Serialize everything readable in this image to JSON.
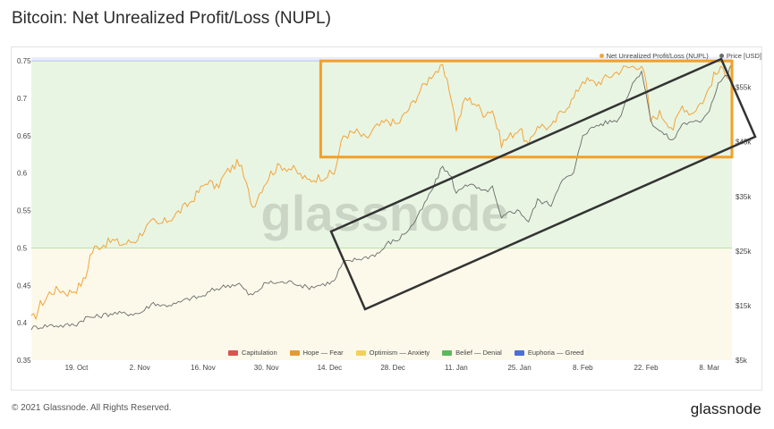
{
  "title": "Bitcoin: Net Unrealized Profit/Loss (NUPL)",
  "footer": {
    "copyright": "© 2021 Glassnode. All Rights Reserved.",
    "logo": "glassnode"
  },
  "watermark": "glassnode",
  "chart_data": {
    "type": "line",
    "title": "Bitcoin: Net Unrealized Profit/Loss (NUPL)",
    "x_tick_labels": [
      "19. Oct",
      "2. Nov",
      "16. Nov",
      "30. Nov",
      "14. Dec",
      "28. Dec",
      "11. Jan",
      "25. Jan",
      "8. Feb",
      "22. Feb",
      "8. Mar"
    ],
    "x_tick_dates": [
      "2020-10-19",
      "2020-11-02",
      "2020-11-16",
      "2020-11-30",
      "2020-12-14",
      "2020-12-28",
      "2021-01-11",
      "2021-01-25",
      "2021-02-08",
      "2021-02-22",
      "2021-03-08"
    ],
    "x_range": [
      "2020-10-09",
      "2021-03-13"
    ],
    "y_left": {
      "ticks": [
        "0.35",
        "0.4",
        "0.45",
        "0.5",
        "0.55",
        "0.6",
        "0.65",
        "0.7",
        "0.75"
      ],
      "range": [
        0.35,
        0.755
      ]
    },
    "y_right": {
      "ticks": [
        "$5k",
        "$15k",
        "$25k",
        "$35k",
        "$45k",
        "$55k"
      ],
      "range": [
        5000,
        60500
      ]
    },
    "zones": [
      {
        "name": "Hope — Fear",
        "from": 0.35,
        "to": 0.5,
        "color": "#fdf9ea"
      },
      {
        "name": "Belief — Denial",
        "from": 0.5,
        "to": 0.75,
        "color": "#e8f5e3"
      },
      {
        "name": "Euphoria — Greed",
        "from": 0.75,
        "to": 0.755,
        "color": "#e9ecfb"
      }
    ],
    "series": [
      {
        "name": "Net Unrealized Profit/Loss (NUPL)",
        "axis": "left",
        "color": "#f3a43a",
        "points": [
          [
            "2020-10-09",
            0.405
          ],
          [
            "2020-10-10",
            0.41
          ],
          [
            "2020-10-11",
            0.425
          ],
          [
            "2020-10-12",
            0.43
          ],
          [
            "2020-10-13",
            0.44
          ],
          [
            "2020-10-15",
            0.445
          ],
          [
            "2020-10-17",
            0.44
          ],
          [
            "2020-10-19",
            0.445
          ],
          [
            "2020-10-21",
            0.46
          ],
          [
            "2020-10-22",
            0.49
          ],
          [
            "2020-10-23",
            0.5
          ],
          [
            "2020-10-25",
            0.505
          ],
          [
            "2020-10-27",
            0.51
          ],
          [
            "2020-10-29",
            0.505
          ],
          [
            "2020-11-01",
            0.51
          ],
          [
            "2020-11-03",
            0.525
          ],
          [
            "2020-11-05",
            0.535
          ],
          [
            "2020-11-06",
            0.53
          ],
          [
            "2020-11-09",
            0.54
          ],
          [
            "2020-11-11",
            0.55
          ],
          [
            "2020-11-13",
            0.56
          ],
          [
            "2020-11-17",
            0.59
          ],
          [
            "2020-11-19",
            0.58
          ],
          [
            "2020-11-21",
            0.6
          ],
          [
            "2020-11-24",
            0.615
          ],
          [
            "2020-11-26",
            0.575
          ],
          [
            "2020-11-27",
            0.555
          ],
          [
            "2020-11-29",
            0.58
          ],
          [
            "2020-12-01",
            0.6
          ],
          [
            "2020-12-03",
            0.61
          ],
          [
            "2020-12-06",
            0.605
          ],
          [
            "2020-12-09",
            0.59
          ],
          [
            "2020-12-12",
            0.595
          ],
          [
            "2020-12-15",
            0.6
          ],
          [
            "2020-12-16",
            0.625
          ],
          [
            "2020-12-17",
            0.65
          ],
          [
            "2020-12-20",
            0.655
          ],
          [
            "2020-12-22",
            0.645
          ],
          [
            "2020-12-24",
            0.66
          ],
          [
            "2020-12-27",
            0.67
          ],
          [
            "2020-12-29",
            0.665
          ],
          [
            "2021-01-01",
            0.69
          ],
          [
            "2021-01-03",
            0.71
          ],
          [
            "2021-01-06",
            0.735
          ],
          [
            "2021-01-08",
            0.74
          ],
          [
            "2021-01-10",
            0.7
          ],
          [
            "2021-01-11",
            0.66
          ],
          [
            "2021-01-13",
            0.7
          ],
          [
            "2021-01-15",
            0.695
          ],
          [
            "2021-01-17",
            0.68
          ],
          [
            "2021-01-19",
            0.685
          ],
          [
            "2021-01-21",
            0.64
          ],
          [
            "2021-01-23",
            0.65
          ],
          [
            "2021-01-25",
            0.66
          ],
          [
            "2021-01-27",
            0.635
          ],
          [
            "2021-01-29",
            0.665
          ],
          [
            "2021-02-01",
            0.66
          ],
          [
            "2021-02-03",
            0.68
          ],
          [
            "2021-02-06",
            0.7
          ],
          [
            "2021-02-08",
            0.725
          ],
          [
            "2021-02-11",
            0.72
          ],
          [
            "2021-02-14",
            0.73
          ],
          [
            "2021-02-17",
            0.74
          ],
          [
            "2021-02-21",
            0.745
          ],
          [
            "2021-02-22",
            0.72
          ],
          [
            "2021-02-23",
            0.67
          ],
          [
            "2021-02-25",
            0.68
          ],
          [
            "2021-02-28",
            0.66
          ],
          [
            "2021-03-02",
            0.69
          ],
          [
            "2021-03-04",
            0.68
          ],
          [
            "2021-03-07",
            0.7
          ],
          [
            "2021-03-09",
            0.73
          ],
          [
            "2021-03-11",
            0.74
          ],
          [
            "2021-03-13",
            0.725
          ]
        ]
      },
      {
        "name": "Price [USD]",
        "axis": "right",
        "color": "#6b6b6b",
        "points": [
          [
            "2020-10-09",
            10900
          ],
          [
            "2020-10-13",
            11400
          ],
          [
            "2020-10-16",
            11300
          ],
          [
            "2020-10-19",
            11600
          ],
          [
            "2020-10-21",
            12800
          ],
          [
            "2020-10-23",
            12900
          ],
          [
            "2020-10-27",
            13600
          ],
          [
            "2020-10-30",
            13500
          ],
          [
            "2020-11-02",
            13600
          ],
          [
            "2020-11-05",
            15500
          ],
          [
            "2020-11-07",
            15000
          ],
          [
            "2020-11-10",
            15300
          ],
          [
            "2020-11-13",
            16300
          ],
          [
            "2020-11-16",
            16700
          ],
          [
            "2020-11-18",
            17800
          ],
          [
            "2020-11-21",
            18600
          ],
          [
            "2020-11-24",
            19000
          ],
          [
            "2020-11-26",
            17100
          ],
          [
            "2020-11-27",
            16900
          ],
          [
            "2020-11-30",
            19200
          ],
          [
            "2020-12-02",
            19200
          ],
          [
            "2020-12-06",
            19300
          ],
          [
            "2020-12-09",
            18300
          ],
          [
            "2020-12-12",
            18800
          ],
          [
            "2020-12-15",
            19400
          ],
          [
            "2020-12-16",
            21300
          ],
          [
            "2020-12-17",
            22800
          ],
          [
            "2020-12-20",
            23500
          ],
          [
            "2020-12-22",
            23800
          ],
          [
            "2020-12-25",
            24700
          ],
          [
            "2020-12-27",
            26500
          ],
          [
            "2020-12-29",
            27000
          ],
          [
            "2021-01-01",
            29400
          ],
          [
            "2021-01-03",
            32000
          ],
          [
            "2021-01-06",
            36800
          ],
          [
            "2021-01-08",
            40600
          ],
          [
            "2021-01-10",
            38300
          ],
          [
            "2021-01-11",
            35500
          ],
          [
            "2021-01-13",
            37300
          ],
          [
            "2021-01-15",
            36800
          ],
          [
            "2021-01-17",
            35800
          ],
          [
            "2021-01-19",
            36600
          ],
          [
            "2021-01-21",
            30800
          ],
          [
            "2021-01-23",
            32300
          ],
          [
            "2021-01-25",
            32300
          ],
          [
            "2021-01-27",
            30400
          ],
          [
            "2021-01-29",
            34300
          ],
          [
            "2021-02-01",
            33500
          ],
          [
            "2021-02-03",
            37600
          ],
          [
            "2021-02-06",
            39200
          ],
          [
            "2021-02-08",
            46400
          ],
          [
            "2021-02-11",
            48000
          ],
          [
            "2021-02-14",
            48700
          ],
          [
            "2021-02-16",
            49100
          ],
          [
            "2021-02-19",
            55900
          ],
          [
            "2021-02-21",
            57500
          ],
          [
            "2021-02-22",
            54200
          ],
          [
            "2021-02-23",
            48800
          ],
          [
            "2021-02-25",
            47000
          ],
          [
            "2021-02-28",
            45200
          ],
          [
            "2021-03-02",
            48400
          ],
          [
            "2021-03-04",
            48400
          ],
          [
            "2021-03-06",
            48800
          ],
          [
            "2021-03-08",
            50900
          ],
          [
            "2021-03-10",
            55800
          ],
          [
            "2021-03-12",
            57300
          ],
          [
            "2021-03-13",
            59300
          ]
        ]
      }
    ],
    "legend_top": [
      {
        "label": "Net Unrealized Profit/Loss (NUPL)",
        "color": "#f3a43a"
      },
      {
        "label": "Price [USD]",
        "color": "#6b6b6b"
      }
    ],
    "legend_bottom": [
      {
        "label": "Capitulation",
        "color": "#d9534f"
      },
      {
        "label": "Hope — Fear",
        "color": "#e69a35"
      },
      {
        "label": "Optimism — Anxiety",
        "color": "#f2d15a"
      },
      {
        "label": "Belief — Denial",
        "color": "#5cb85c"
      },
      {
        "label": "Euphoria — Greed",
        "color": "#4a6fd8"
      }
    ],
    "annotations": [
      {
        "type": "box",
        "color": "#f2a02a",
        "from": "2020-12-14",
        "to": "2021-03-13",
        "y_from": 0.6,
        "y_to": 0.75,
        "note": "horizontal range"
      },
      {
        "type": "channel",
        "color": "#333333",
        "note": "rising price channel from mid-Dec to mid-Mar"
      }
    ],
    "grid": false
  }
}
